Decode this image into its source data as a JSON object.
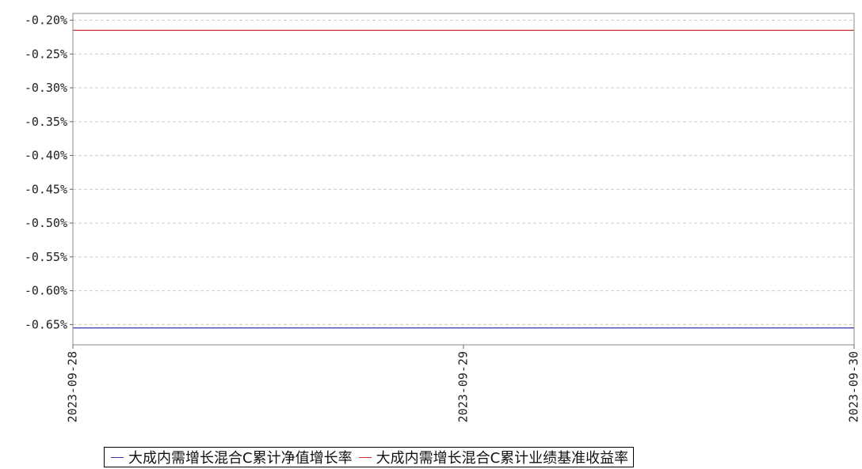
{
  "chart_data": {
    "type": "line",
    "title": "",
    "xlabel": "",
    "ylabel": "",
    "x": [
      "2023-09-28",
      "2023-09-29",
      "2023-09-30"
    ],
    "ylim": [
      -0.68,
      -0.19
    ],
    "yticks": [
      -0.2,
      -0.25,
      -0.3,
      -0.35,
      -0.4,
      -0.45,
      -0.5,
      -0.55,
      -0.6,
      -0.65
    ],
    "ytick_labels": [
      "-0.20%",
      "-0.25%",
      "-0.30%",
      "-0.35%",
      "-0.40%",
      "-0.45%",
      "-0.50%",
      "-0.55%",
      "-0.60%",
      "-0.65%"
    ],
    "grid": true,
    "legend_position": "bottom",
    "series": [
      {
        "name": "大成内需增长混合C累计净值增长率",
        "color": "#3333aa",
        "values": [
          -0.655,
          -0.655,
          -0.655
        ]
      },
      {
        "name": "大成内需增长混合C累计业绩基准收益率",
        "color": "#cc3333",
        "values": [
          -0.215,
          -0.215,
          -0.215
        ]
      }
    ]
  }
}
